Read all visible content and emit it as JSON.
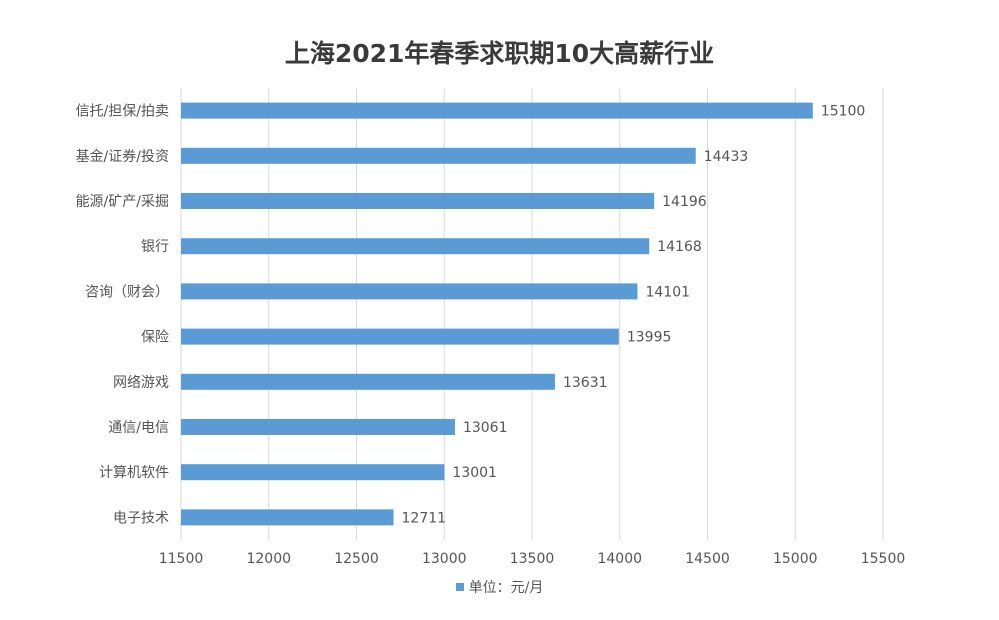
{
  "colors": {
    "bar": "#5b9bd5",
    "grid": "#d9d9d9",
    "text": "#555555",
    "title": "#3a3a3a"
  },
  "chart_data": {
    "type": "bar",
    "orientation": "horizontal",
    "title": "上海2021年春季求职期10大高薪行业",
    "categories": [
      "信托/担保/拍卖",
      "基金/证券/投资",
      "能源/矿产/采掘",
      "银行",
      "咨询（财会）",
      "保险",
      "网络游戏",
      "通信/电信",
      "计算机软件",
      "电子技术"
    ],
    "values": [
      15100,
      14433,
      14196,
      14168,
      14101,
      13995,
      13631,
      13061,
      13001,
      12711
    ],
    "legend": "单位：元/月",
    "legend_position": "bottom",
    "xlim": [
      11500,
      15500
    ],
    "x_ticks": [
      11500,
      12000,
      12500,
      13000,
      13500,
      14000,
      14500,
      15000,
      15500
    ],
    "grid": true
  }
}
